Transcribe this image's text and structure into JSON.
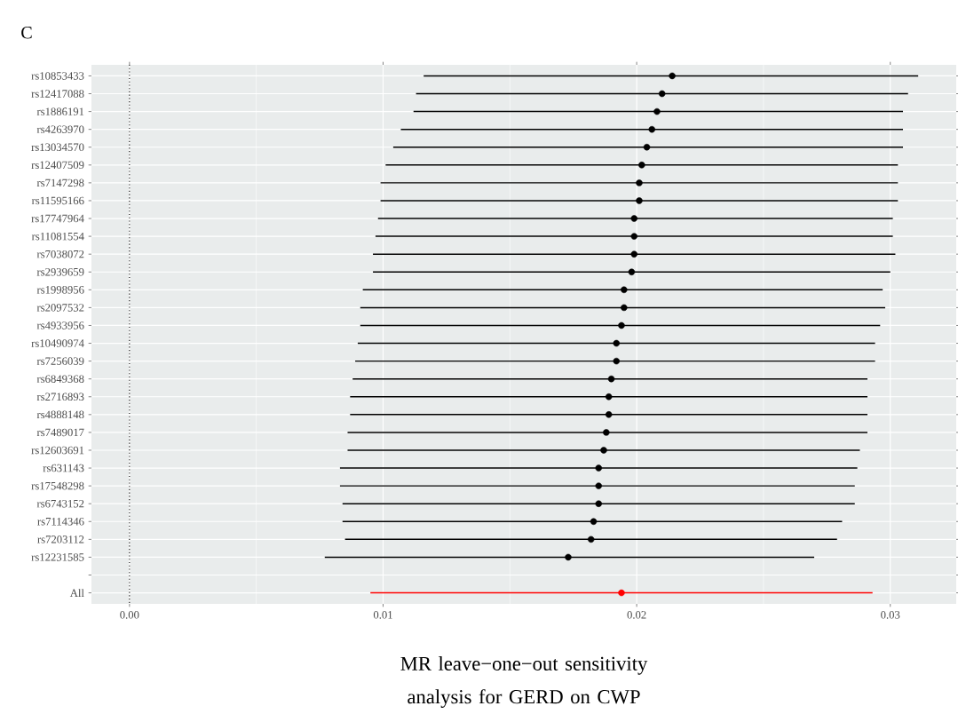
{
  "chart_data": {
    "type": "scatter",
    "orientation": "horizontal",
    "annotations": [
      "C"
    ],
    "xlabel": "MR leave−one−out sensitivity analysis for GERD on CWP",
    "categories": [
      "rs10853433",
      "rs12417088",
      "rs1886191",
      "rs4263970",
      "rs13034570",
      "rs12407509",
      "rs7147298",
      "rs11595166",
      "rs17747964",
      "rs11081554",
      "rs7038072",
      "rs2939659",
      "rs1998956",
      "rs2097532",
      "rs4933956",
      "rs10490974",
      "rs7256039",
      "rs6849368",
      "rs2716893",
      "rs4888148",
      "rs7489017",
      "rs12603691",
      "rs631143",
      "rs17548298",
      "rs6743152",
      "rs7114346",
      "rs7203112",
      "rs12231585",
      null,
      "All"
    ],
    "series": [
      {
        "color": "#000000",
        "values": [
          0.0214,
          0.021,
          0.0208,
          0.0206,
          0.0204,
          0.0202,
          0.0201,
          0.0201,
          0.0199,
          0.0199,
          0.0199,
          0.0198,
          0.0195,
          0.0195,
          0.0194,
          0.0192,
          0.0192,
          0.019,
          0.0189,
          0.0189,
          0.0188,
          0.0187,
          0.0185,
          0.0185,
          0.0185,
          0.0183,
          0.0182,
          0.0173,
          null,
          null
        ],
        "errors": [
          [
            0.0116,
            0.0311
          ],
          [
            0.0113,
            0.0307
          ],
          [
            0.0112,
            0.0305
          ],
          [
            0.0107,
            0.0305
          ],
          [
            0.0104,
            0.0305
          ],
          [
            0.0101,
            0.0303
          ],
          [
            0.0099,
            0.0303
          ],
          [
            0.0099,
            0.0303
          ],
          [
            0.0098,
            0.0301
          ],
          [
            0.0097,
            0.0301
          ],
          [
            0.0096,
            0.0302
          ],
          [
            0.0096,
            0.03
          ],
          [
            0.0092,
            0.0297
          ],
          [
            0.0091,
            0.0298
          ],
          [
            0.0091,
            0.0296
          ],
          [
            0.009,
            0.0294
          ],
          [
            0.0089,
            0.0294
          ],
          [
            0.0088,
            0.0291
          ],
          [
            0.0087,
            0.0291
          ],
          [
            0.0087,
            0.0291
          ],
          [
            0.0086,
            0.0291
          ],
          [
            0.0086,
            0.0288
          ],
          [
            0.0083,
            0.0287
          ],
          [
            0.0083,
            0.0286
          ],
          [
            0.0084,
            0.0286
          ],
          [
            0.0084,
            0.0281
          ],
          [
            0.0085,
            0.0279
          ],
          [
            0.0077,
            0.027
          ],
          null,
          null
        ]
      },
      {
        "color": "#ff0000",
        "values": [
          null,
          null,
          null,
          null,
          null,
          null,
          null,
          null,
          null,
          null,
          null,
          null,
          null,
          null,
          null,
          null,
          null,
          null,
          null,
          null,
          null,
          null,
          null,
          null,
          null,
          null,
          null,
          null,
          null,
          0.0194
        ],
        "errors": [
          null,
          null,
          null,
          null,
          null,
          null,
          null,
          null,
          null,
          null,
          null,
          null,
          null,
          null,
          null,
          null,
          null,
          null,
          null,
          null,
          null,
          null,
          null,
          null,
          null,
          null,
          null,
          null,
          null,
          [
            0.0095,
            0.0293
          ]
        ]
      }
    ],
    "xlim": [
      -0.0015,
      0.0326
    ],
    "xticks": [
      {
        "value": 0,
        "label": "0.00"
      },
      {
        "value": 0.01,
        "label": "0.01"
      },
      {
        "value": 0.02,
        "label": "0.02"
      },
      {
        "value": 0.03,
        "label": "0.03"
      }
    ],
    "grid": true,
    "marker": "circle",
    "ref_lines": [
      {
        "axis": "x",
        "value": 0,
        "line_style": "dotted"
      }
    ]
  }
}
